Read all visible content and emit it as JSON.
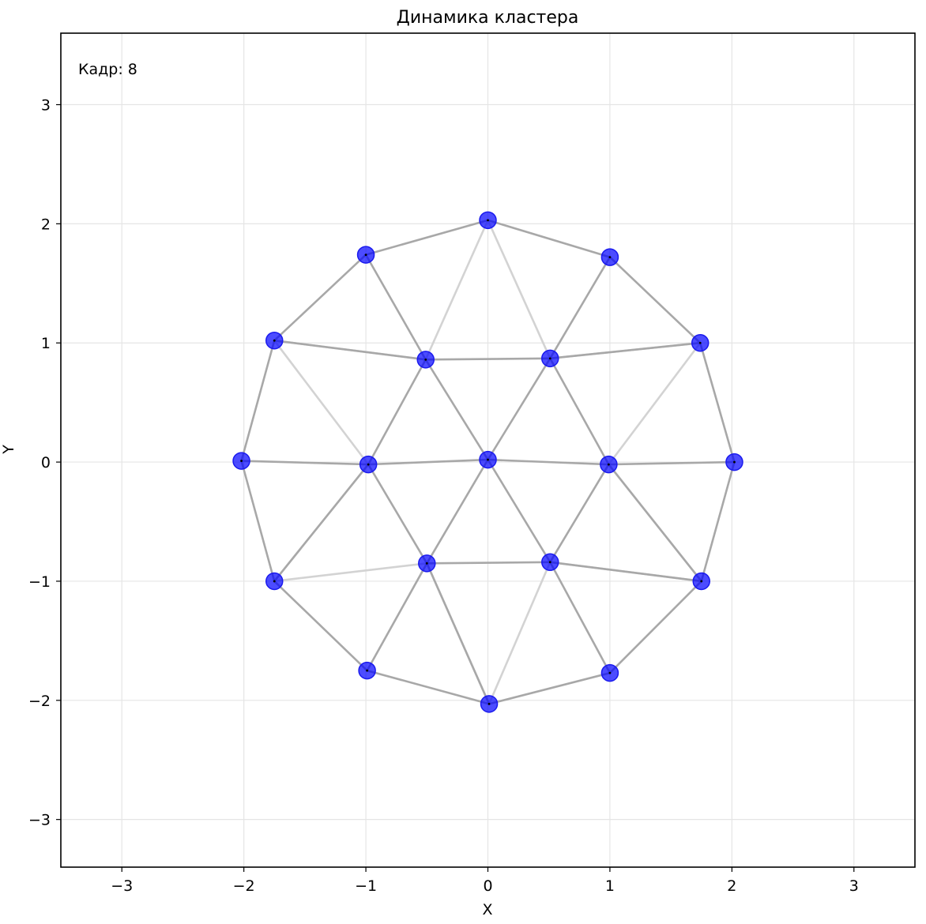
{
  "chart_data": {
    "type": "scatter",
    "title": "Динамика кластера",
    "xlabel": "X",
    "ylabel": "Y",
    "xlim": [
      -3.5,
      3.5
    ],
    "ylim": [
      -3.4,
      3.6
    ],
    "xticks": [
      -3,
      -2,
      -1,
      0,
      1,
      2,
      3
    ],
    "yticks": [
      -3,
      -2,
      -1,
      0,
      1,
      2,
      3
    ],
    "xtick_labels": [
      "−3",
      "−2",
      "−1",
      "0",
      "1",
      "2",
      "3"
    ],
    "ytick_labels": [
      "−3",
      "−2",
      "−1",
      "0",
      "1",
      "2",
      "3"
    ],
    "grid": true,
    "annotation": "Кадр: 8",
    "colors": {
      "point_fill": "#0000ff",
      "point_edge": "#1a1aee",
      "edge_strong": "#a8a8a8",
      "edge_weak": "#d3d3d3",
      "grid": "#e5e5e5"
    },
    "points": [
      {
        "x": 0.0,
        "y": 0.02
      },
      {
        "x": 0.99,
        "y": -0.02
      },
      {
        "x": 0.51,
        "y": 0.87
      },
      {
        "x": -0.51,
        "y": 0.86
      },
      {
        "x": -0.98,
        "y": -0.02
      },
      {
        "x": -0.5,
        "y": -0.85
      },
      {
        "x": 0.51,
        "y": -0.84
      },
      {
        "x": 2.02,
        "y": 0.0
      },
      {
        "x": 1.74,
        "y": 1.0
      },
      {
        "x": 1.0,
        "y": 1.72
      },
      {
        "x": 0.0,
        "y": 2.03
      },
      {
        "x": -1.0,
        "y": 1.74
      },
      {
        "x": -1.75,
        "y": 1.02
      },
      {
        "x": -2.02,
        "y": 0.01
      },
      {
        "x": -1.75,
        "y": -1.0
      },
      {
        "x": -0.99,
        "y": -1.75
      },
      {
        "x": 0.01,
        "y": -2.03
      },
      {
        "x": 1.0,
        "y": -1.77
      },
      {
        "x": 1.75,
        "y": -1.0
      }
    ],
    "edges_strong": [
      [
        0,
        1
      ],
      [
        0,
        2
      ],
      [
        0,
        3
      ],
      [
        0,
        4
      ],
      [
        0,
        5
      ],
      [
        0,
        6
      ],
      [
        1,
        2
      ],
      [
        2,
        3
      ],
      [
        3,
        4
      ],
      [
        4,
        5
      ],
      [
        5,
        6
      ],
      [
        6,
        1
      ],
      [
        7,
        8
      ],
      [
        8,
        9
      ],
      [
        9,
        10
      ],
      [
        10,
        11
      ],
      [
        11,
        12
      ],
      [
        12,
        13
      ],
      [
        13,
        14
      ],
      [
        14,
        15
      ],
      [
        15,
        16
      ],
      [
        16,
        17
      ],
      [
        17,
        18
      ],
      [
        18,
        7
      ],
      [
        1,
        7
      ],
      [
        2,
        9
      ],
      [
        3,
        11
      ],
      [
        4,
        13
      ],
      [
        5,
        15
      ],
      [
        6,
        17
      ],
      [
        2,
        8
      ],
      [
        3,
        12
      ],
      [
        4,
        14
      ],
      [
        5,
        16
      ],
      [
        6,
        18
      ],
      [
        1,
        18
      ]
    ],
    "edges_weak": [
      [
        2,
        8
      ],
      [
        2,
        10
      ],
      [
        3,
        10
      ],
      [
        3,
        12
      ],
      [
        4,
        12
      ],
      [
        4,
        14
      ],
      [
        5,
        14
      ],
      [
        5,
        16
      ],
      [
        6,
        16
      ],
      [
        6,
        18
      ],
      [
        1,
        18
      ],
      [
        1,
        8
      ]
    ]
  }
}
